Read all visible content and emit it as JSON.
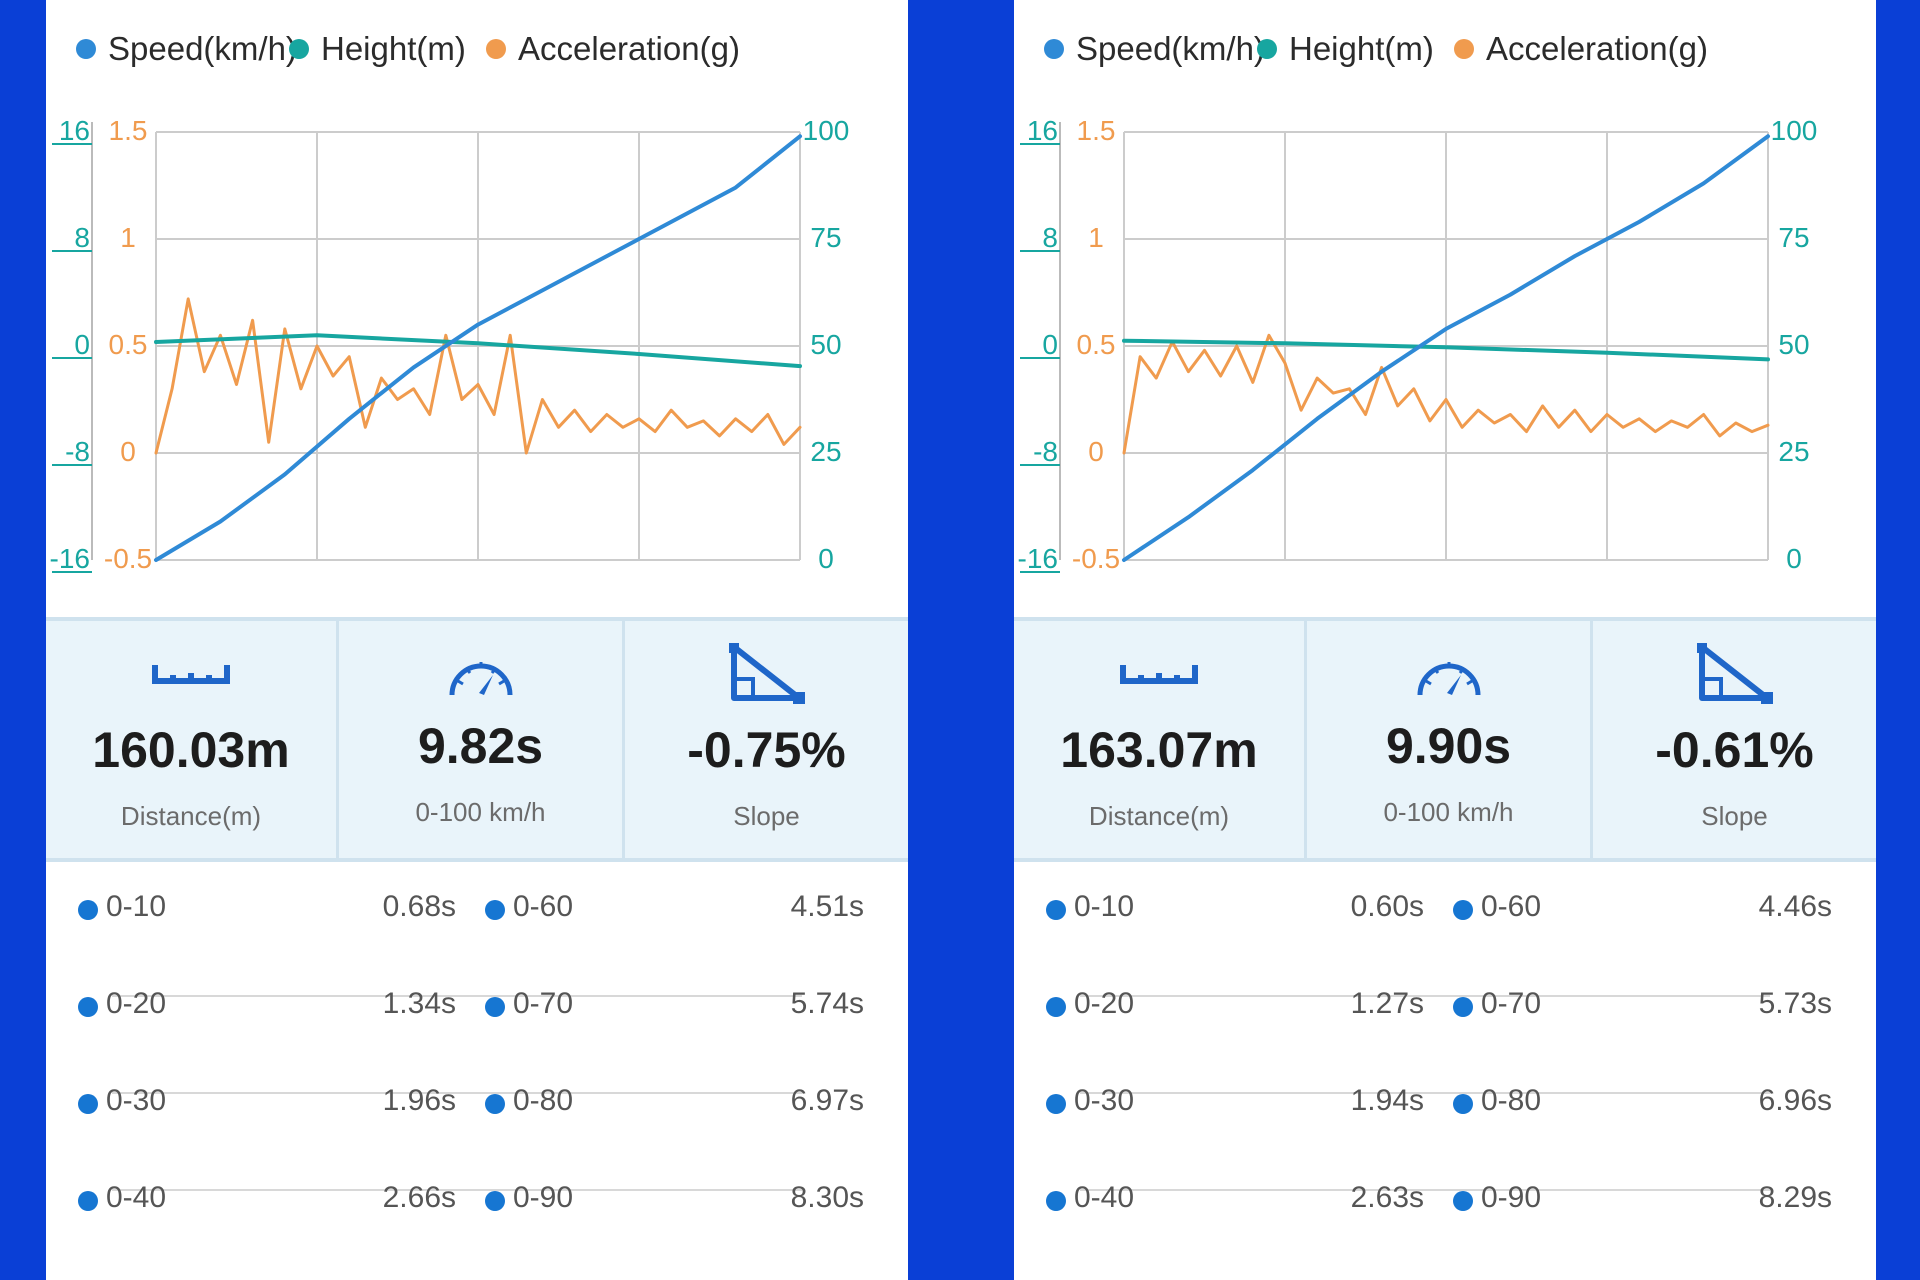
{
  "panels": [
    {
      "legend": [
        {
          "label": "Speed(km/h)",
          "color": "#2f8ad6"
        },
        {
          "label": "Height(m)",
          "color": "#17a6a0"
        },
        {
          "label": "Acceleration(g)",
          "color": "#f09b4e"
        }
      ],
      "stats": [
        {
          "icon": "ruler-icon",
          "value": "160.03m",
          "label": "Distance(m)"
        },
        {
          "icon": "speedometer-icon",
          "value": "9.82s",
          "label": "0-100 km/h"
        },
        {
          "icon": "slope-icon",
          "value": "-0.75%",
          "label": "Slope"
        }
      ],
      "times": [
        {
          "label": "0-10",
          "value": "0.68s"
        },
        {
          "label": "0-20",
          "value": "1.34s"
        },
        {
          "label": "0-30",
          "value": "1.96s"
        },
        {
          "label": "0-40",
          "value": "2.66s"
        },
        {
          "label": "0-60",
          "value": "4.51s"
        },
        {
          "label": "0-70",
          "value": "5.74s"
        },
        {
          "label": "0-80",
          "value": "6.97s"
        },
        {
          "label": "0-90",
          "value": "8.30s"
        }
      ]
    },
    {
      "legend": [
        {
          "label": "Speed(km/h)",
          "color": "#2f8ad6"
        },
        {
          "label": "Height(m)",
          "color": "#17a6a0"
        },
        {
          "label": "Acceleration(g)",
          "color": "#f09b4e"
        }
      ],
      "stats": [
        {
          "icon": "ruler-icon",
          "value": "163.07m",
          "label": "Distance(m)"
        },
        {
          "icon": "speedometer-icon",
          "value": "9.90s",
          "label": "0-100 km/h"
        },
        {
          "icon": "slope-icon",
          "value": "-0.61%",
          "label": "Slope"
        }
      ],
      "times": [
        {
          "label": "0-10",
          "value": "0.60s"
        },
        {
          "label": "0-20",
          "value": "1.27s"
        },
        {
          "label": "0-30",
          "value": "1.94s"
        },
        {
          "label": "0-40",
          "value": "2.63s"
        },
        {
          "label": "0-60",
          "value": "4.46s"
        },
        {
          "label": "0-70",
          "value": "5.73s"
        },
        {
          "label": "0-80",
          "value": "6.96s"
        },
        {
          "label": "0-90",
          "value": "8.29s"
        }
      ]
    }
  ],
  "chart_data": [
    {
      "type": "line",
      "title": "",
      "xlabel": "",
      "grid": true,
      "legend_position": "top",
      "x": [
        0,
        1,
        2,
        3,
        4
      ],
      "axes": {
        "height": {
          "ticks": [
            "16",
            "8",
            "0",
            "-8",
            "-16"
          ],
          "ylim": [
            -16,
            16
          ],
          "side": "left-outer"
        },
        "acceleration": {
          "ticks": [
            "1.5",
            "1",
            "0.5",
            "0",
            "-0.5"
          ],
          "ylim": [
            -0.5,
            1.5
          ],
          "side": "left-inner"
        },
        "speed": {
          "ticks": [
            "100",
            "75",
            "50",
            "25",
            "0"
          ],
          "ylim": [
            0,
            100
          ],
          "side": "right"
        }
      },
      "series": [
        {
          "name": "Speed(km/h)",
          "axis": "speed",
          "color": "#2f8ad6",
          "x": [
            0,
            0.4,
            0.8,
            1.2,
            1.6,
            2.0,
            2.4,
            2.8,
            3.2,
            3.6,
            4.0
          ],
          "values": [
            0,
            9,
            20,
            33,
            45,
            55,
            63,
            71,
            79,
            87,
            99
          ]
        },
        {
          "name": "Height(m)",
          "axis": "height",
          "color": "#17a6a0",
          "x": [
            0,
            1,
            2,
            3,
            4
          ],
          "values": [
            0.3,
            0.8,
            0.2,
            -0.6,
            -1.5
          ]
        },
        {
          "name": "Acceleration(g)",
          "axis": "acceleration",
          "color": "#f09b4e",
          "x": [
            0,
            0.1,
            0.2,
            0.3,
            0.4,
            0.5,
            0.6,
            0.7,
            0.8,
            0.9,
            1.0,
            1.1,
            1.2,
            1.3,
            1.4,
            1.5,
            1.6,
            1.7,
            1.8,
            1.9,
            2.0,
            2.1,
            2.2,
            2.3,
            2.4,
            2.5,
            2.6,
            2.7,
            2.8,
            2.9,
            3.0,
            3.1,
            3.2,
            3.3,
            3.4,
            3.5,
            3.6,
            3.7,
            3.8,
            3.9,
            4.0
          ],
          "values": [
            0.0,
            0.3,
            0.72,
            0.38,
            0.55,
            0.32,
            0.62,
            0.05,
            0.58,
            0.3,
            0.5,
            0.36,
            0.45,
            0.12,
            0.35,
            0.25,
            0.3,
            0.18,
            0.55,
            0.25,
            0.32,
            0.18,
            0.55,
            0.0,
            0.25,
            0.12,
            0.2,
            0.1,
            0.18,
            0.12,
            0.16,
            0.1,
            0.2,
            0.12,
            0.15,
            0.08,
            0.16,
            0.1,
            0.18,
            0.04,
            0.12
          ]
        }
      ]
    },
    {
      "type": "line",
      "title": "",
      "xlabel": "",
      "grid": true,
      "legend_position": "top",
      "x": [
        0,
        1,
        2,
        3,
        4
      ],
      "axes": {
        "height": {
          "ticks": [
            "16",
            "8",
            "0",
            "-8",
            "-16"
          ],
          "ylim": [
            -16,
            16
          ],
          "side": "left-outer"
        },
        "acceleration": {
          "ticks": [
            "1.5",
            "1",
            "0.5",
            "0",
            "-0.5"
          ],
          "ylim": [
            -0.5,
            1.5
          ],
          "side": "left-inner"
        },
        "speed": {
          "ticks": [
            "100",
            "75",
            "50",
            "25",
            "0"
          ],
          "ylim": [
            0,
            100
          ],
          "side": "right"
        }
      },
      "series": [
        {
          "name": "Speed(km/h)",
          "axis": "speed",
          "color": "#2f8ad6",
          "x": [
            0,
            0.4,
            0.8,
            1.2,
            1.6,
            2.0,
            2.4,
            2.8,
            3.2,
            3.6,
            4.0
          ],
          "values": [
            0,
            10,
            21,
            33,
            44,
            54,
            62,
            71,
            79,
            88,
            99
          ]
        },
        {
          "name": "Height(m)",
          "axis": "height",
          "color": "#17a6a0",
          "x": [
            0,
            1,
            2,
            3,
            4
          ],
          "values": [
            0.4,
            0.2,
            -0.1,
            -0.5,
            -1.0
          ]
        },
        {
          "name": "Acceleration(g)",
          "axis": "acceleration",
          "color": "#f09b4e",
          "x": [
            0,
            0.1,
            0.2,
            0.3,
            0.4,
            0.5,
            0.6,
            0.7,
            0.8,
            0.9,
            1.0,
            1.1,
            1.2,
            1.3,
            1.4,
            1.5,
            1.6,
            1.7,
            1.8,
            1.9,
            2.0,
            2.1,
            2.2,
            2.3,
            2.4,
            2.5,
            2.6,
            2.7,
            2.8,
            2.9,
            3.0,
            3.1,
            3.2,
            3.3,
            3.4,
            3.5,
            3.6,
            3.7,
            3.8,
            3.9,
            4.0
          ],
          "values": [
            0.0,
            0.45,
            0.35,
            0.52,
            0.38,
            0.48,
            0.36,
            0.5,
            0.33,
            0.55,
            0.42,
            0.2,
            0.35,
            0.28,
            0.3,
            0.18,
            0.4,
            0.22,
            0.3,
            0.15,
            0.25,
            0.12,
            0.2,
            0.14,
            0.18,
            0.1,
            0.22,
            0.12,
            0.2,
            0.1,
            0.18,
            0.12,
            0.16,
            0.1,
            0.15,
            0.12,
            0.18,
            0.08,
            0.14,
            0.1,
            0.13
          ]
        }
      ]
    }
  ]
}
